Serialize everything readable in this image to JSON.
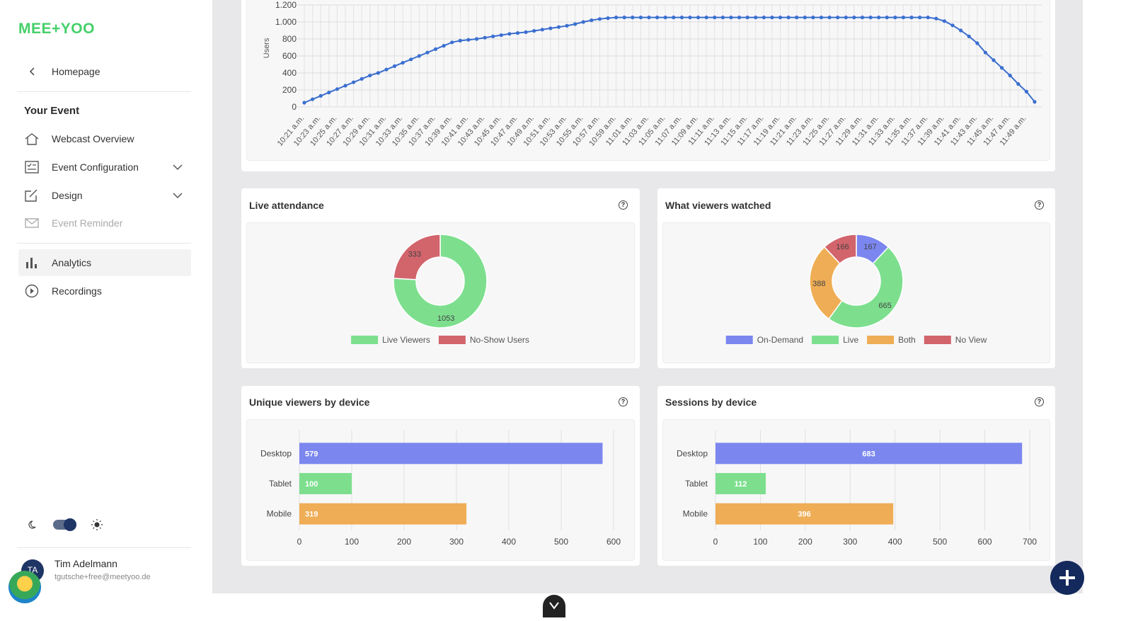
{
  "sidebar": {
    "logo": "MEE+YOO",
    "back": "Homepage",
    "section": "Your Event",
    "nav": [
      "Webcast Overview",
      "Event Configuration",
      "Design",
      "Event Reminder",
      "Analytics",
      "Recordings"
    ],
    "user": {
      "initials": "TA",
      "name": "Tim Adelmann",
      "email": "tgutsche+free@meetyoo.de"
    }
  },
  "chart_data": [
    {
      "type": "line",
      "ylabel": "Users",
      "categories": [
        "10:21 a.m.",
        null,
        "10:23 a.m.",
        null,
        "10:25 a.m.",
        null,
        "10:27 a.m.",
        null,
        "10:29 a.m.",
        null,
        "10:31 a.m.",
        null,
        "10:33 a.m.",
        null,
        "10:35 a.m.",
        null,
        "10:37 a.m.",
        null,
        "10:39 a.m.",
        null,
        "10:41 a.m.",
        null,
        "10:43 a.m.",
        null,
        "10:45 a.m.",
        null,
        "10:47 a.m.",
        null,
        "10:49 a.m.",
        null,
        "10:51 a.m.",
        null,
        "10:53 a.m.",
        null,
        "10:55 a.m.",
        null,
        "10:57 a.m.",
        null,
        "10:59 a.m.",
        null,
        "11:01 a.m.",
        null,
        "11:03 a.m.",
        null,
        "11:05 a.m.",
        null,
        "11:07 a.m.",
        null,
        "11:09 a.m.",
        null,
        "11:11 a.m.",
        null,
        "11:13 a.m.",
        null,
        "11:15 a.m.",
        null,
        "11:17 a.m.",
        null,
        "11:19 a.m.",
        null,
        "11:21 a.m.",
        null,
        "11:23 a.m.",
        null,
        "11:25 a.m.",
        null,
        "11:27 a.m.",
        null,
        "11:29 a.m.",
        null,
        "11:31 a.m.",
        null,
        "11:33 a.m.",
        null,
        "11:35 a.m.",
        null,
        "11:37 a.m.",
        null,
        "11:39 a.m.",
        null,
        "11:41 a.m.",
        null,
        "11:43 a.m.",
        null,
        "11:45 a.m.",
        null,
        "11:47 a.m.",
        null,
        "11:49 a.m.",
        null
      ],
      "series": [
        {
          "name": "Users",
          "color": "#3b6fcf",
          "values": [
            50,
            90,
            130,
            170,
            210,
            250,
            290,
            330,
            370,
            400,
            440,
            480,
            520,
            560,
            600,
            640,
            680,
            720,
            760,
            780,
            790,
            800,
            815,
            830,
            845,
            860,
            870,
            880,
            895,
            910,
            925,
            940,
            955,
            975,
            1000,
            1020,
            1035,
            1045,
            1053,
            1053,
            1053,
            1053,
            1053,
            1053,
            1053,
            1053,
            1053,
            1053,
            1053,
            1053,
            1053,
            1053,
            1053,
            1053,
            1053,
            1053,
            1053,
            1053,
            1053,
            1053,
            1053,
            1053,
            1053,
            1053,
            1053,
            1053,
            1053,
            1053,
            1053,
            1053,
            1053,
            1053,
            1053,
            1053,
            1053,
            1053,
            1053,
            1040,
            1010,
            960,
            900,
            830,
            750,
            640,
            550,
            460,
            370,
            270,
            180,
            60
          ]
        }
      ],
      "ylim": [
        0,
        1200
      ],
      "yticks": [
        0,
        200,
        400,
        600,
        800,
        {
          "value": 1000,
          "label": "1.000"
        },
        {
          "value": 1200,
          "label": "1.200"
        }
      ],
      "grid": true
    },
    {
      "type": "doughnut",
      "title": "Live attendance",
      "categories": [
        "Live Viewers",
        "No-Show Users"
      ],
      "values": [
        1053,
        333
      ],
      "colors": [
        "#7ddf8e",
        "#d2646c"
      ],
      "legend": "bottom"
    },
    {
      "type": "doughnut",
      "title": "What viewers watched",
      "categories": [
        "On-Demand",
        "Live",
        "Both",
        "No View"
      ],
      "values": [
        167,
        665,
        388,
        166
      ],
      "colors": [
        "#7b86ef",
        "#7ddf8e",
        "#efad55",
        "#d2646c"
      ],
      "legend": "bottom"
    },
    {
      "type": "hbar",
      "title": "Unique viewers by device",
      "categories": [
        "Desktop",
        "Tablet",
        "Mobile"
      ],
      "values": [
        579,
        100,
        319
      ],
      "colors": [
        "#7b86ef",
        "#7ddf8e",
        "#efad55"
      ],
      "xlim": [
        0,
        600
      ],
      "xticks": [
        0,
        100,
        200,
        300,
        400,
        500,
        600
      ],
      "grid": true,
      "label_align": "start"
    },
    {
      "type": "hbar",
      "title": "Sessions by device",
      "categories": [
        "Desktop",
        "Tablet",
        "Mobile"
      ],
      "values": [
        683,
        112,
        396
      ],
      "colors": [
        "#7b86ef",
        "#7ddf8e",
        "#efad55"
      ],
      "xlim": [
        0,
        700
      ],
      "xticks": [
        0,
        100,
        200,
        300,
        400,
        500,
        600,
        700
      ],
      "grid": true,
      "label_align": "middle"
    }
  ]
}
